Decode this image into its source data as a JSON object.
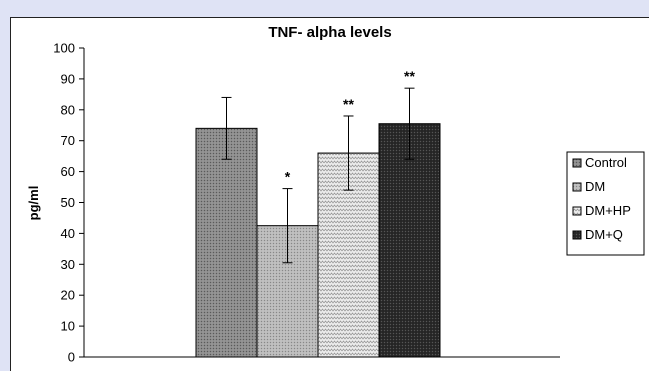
{
  "chart_data": {
    "type": "bar",
    "title": "TNF- alpha levels",
    "xlabel": "",
    "ylabel": "pg/ml",
    "ylim": [
      0,
      100
    ],
    "yticks": [
      0,
      10,
      20,
      30,
      40,
      50,
      60,
      70,
      80,
      90,
      100
    ],
    "grid": false,
    "legend_position": "right",
    "series": [
      {
        "name": "Control",
        "value": 74,
        "error": 10,
        "annotation": "",
        "color": "#8a8a8a",
        "pattern": "dots-mid"
      },
      {
        "name": "DM",
        "value": 42.5,
        "error": 12,
        "annotation": "*",
        "color": "#b8b8b8",
        "pattern": "dots-light"
      },
      {
        "name": "DM+HP",
        "value": 66,
        "error": 12,
        "annotation": "**",
        "color": "#e8e8e8",
        "pattern": "zigzag"
      },
      {
        "name": "DM+Q",
        "value": 75.5,
        "error": 11.5,
        "annotation": "**",
        "color": "#2c2c2c",
        "pattern": "dots-dark"
      }
    ]
  }
}
